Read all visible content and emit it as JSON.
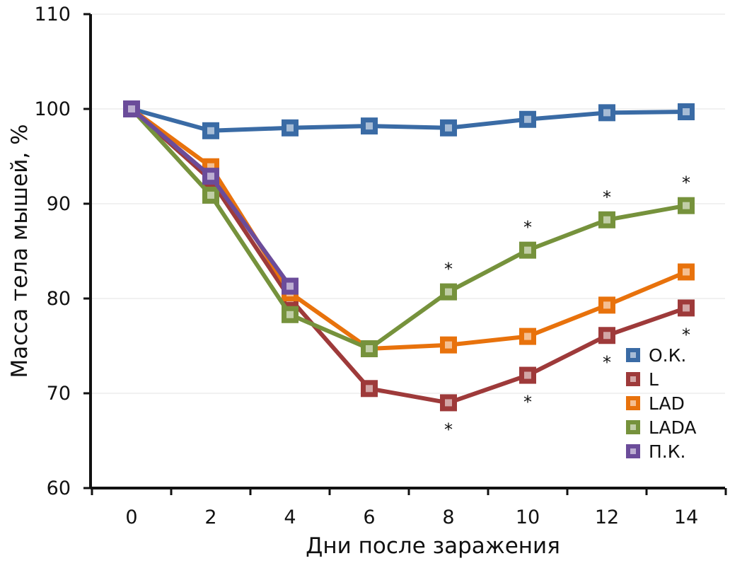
{
  "chart_data": {
    "type": "line",
    "xlabel": "Дни после заражения",
    "ylabel": "Масса тела мышей, %",
    "x": [
      0,
      2,
      4,
      6,
      8,
      10,
      12,
      14
    ],
    "xlim": [
      0,
      14
    ],
    "ylim": [
      60,
      110
    ],
    "yticks": [
      60,
      70,
      80,
      90,
      100,
      110
    ],
    "xticks": [
      0,
      2,
      4,
      6,
      8,
      10,
      12,
      14
    ],
    "grid": true,
    "legend_position": "right",
    "series": [
      {
        "name": "О.К.",
        "color": "#3A6BA5",
        "x": [
          0,
          2,
          4,
          6,
          8,
          10,
          12,
          14
        ],
        "values": [
          100,
          97.7,
          98.0,
          98.2,
          98.0,
          98.9,
          99.6,
          99.7
        ]
      },
      {
        "name": "L",
        "color": "#9E3A3A",
        "x": [
          0,
          2,
          4,
          6,
          8,
          10,
          12,
          14
        ],
        "values": [
          100,
          92.5,
          80.0,
          70.5,
          69.0,
          71.9,
          76.1,
          79.0
        ]
      },
      {
        "name": "LAD",
        "color": "#E8720C",
        "x": [
          0,
          2,
          4,
          6,
          8,
          10,
          12,
          14
        ],
        "values": [
          100,
          93.9,
          80.6,
          74.7,
          75.1,
          76.0,
          79.3,
          82.8
        ]
      },
      {
        "name": "LADA",
        "color": "#76923C",
        "x": [
          0,
          2,
          4,
          6,
          8,
          10,
          12,
          14
        ],
        "values": [
          100,
          90.9,
          78.3,
          74.7,
          80.7,
          85.1,
          88.3,
          89.8
        ]
      },
      {
        "name": "П.К.",
        "color": "#6B4C9A",
        "x": [
          0,
          2,
          4
        ],
        "values": [
          100,
          92.9,
          81.3
        ]
      }
    ],
    "annotations": [
      {
        "text": "*",
        "x": 8,
        "y": 80.7,
        "series": "LADA",
        "position": "above"
      },
      {
        "text": "*",
        "x": 10,
        "y": 85.1,
        "series": "LADA",
        "position": "above"
      },
      {
        "text": "*",
        "x": 12,
        "y": 88.3,
        "series": "LADA",
        "position": "above"
      },
      {
        "text": "*",
        "x": 14,
        "y": 89.8,
        "series": "LADA",
        "position": "above"
      },
      {
        "text": "*",
        "x": 8,
        "y": 69.0,
        "series": "L",
        "position": "below"
      },
      {
        "text": "*",
        "x": 10,
        "y": 71.9,
        "series": "L",
        "position": "below"
      },
      {
        "text": "*",
        "x": 12,
        "y": 76.1,
        "series": "L",
        "position": "below"
      },
      {
        "text": "*",
        "x": 14,
        "y": 79.0,
        "series": "L",
        "position": "below"
      }
    ]
  }
}
